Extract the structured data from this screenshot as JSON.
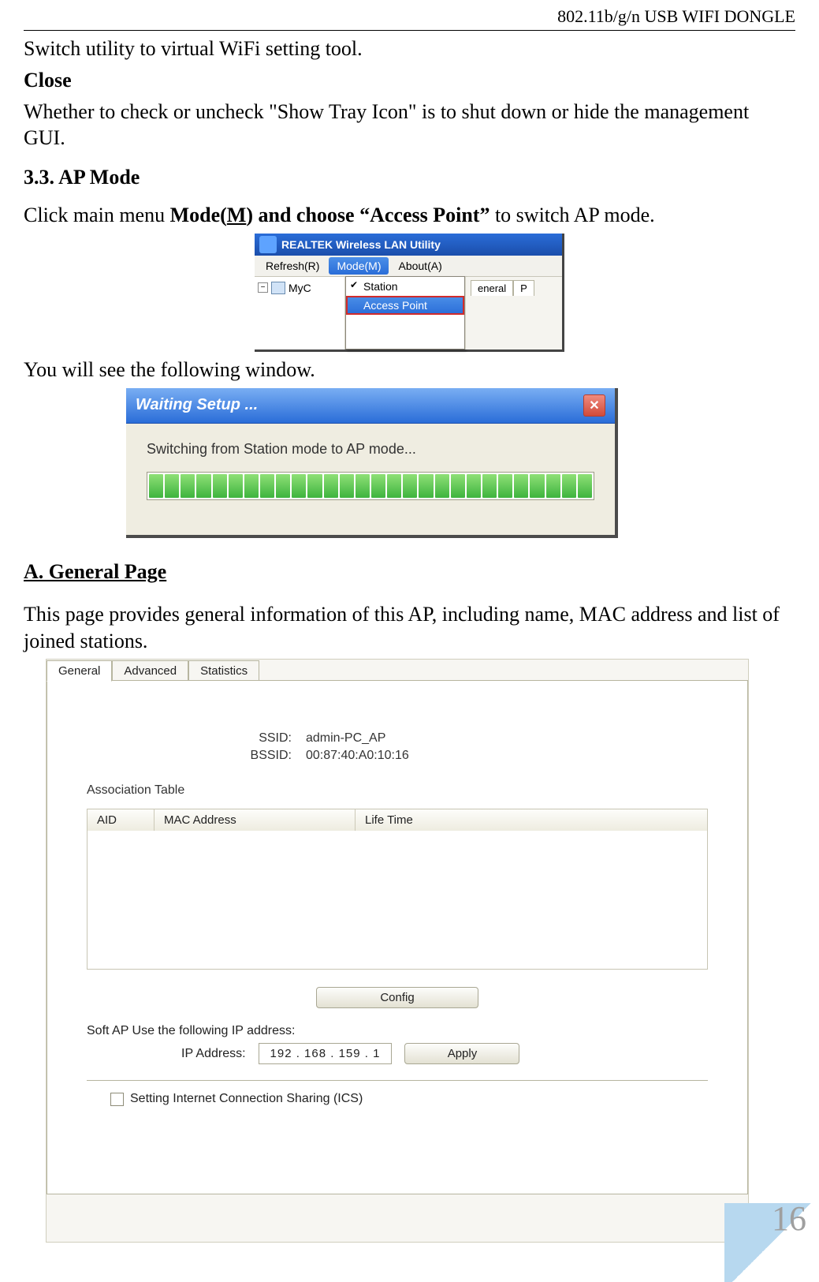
{
  "header": "802.11b/g/n USB WIFI DONGLE",
  "intro": {
    "line1": "Switch utility to virtual WiFi setting tool.",
    "close_label": "Close",
    "line2": "Whether to check or uncheck \"Show Tray Icon\" is to shut down or hide the management GUI."
  },
  "section": {
    "title": "3.3. AP Mode",
    "p1_a": "Click main menu ",
    "p1_b": "Mode(",
    "p1_c": "M",
    "p1_d": ") and choose ",
    "p1_e": "“Access Point”",
    "p1_f": " to switch AP mode.",
    "p2": "You will see the following window."
  },
  "shot1": {
    "title": "REALTEK Wireless LAN Utility",
    "menu": {
      "refresh": "Refresh(R)",
      "mode": "Mode(M)",
      "about": "About(A)"
    },
    "tree_label": "MyC",
    "dropdown": {
      "station": "Station",
      "ap": "Access Point"
    },
    "right_tab1": "eneral",
    "right_tab2": "P"
  },
  "shot2": {
    "title": "Waiting Setup ...",
    "msg": "Switching from Station mode to AP mode...",
    "progress_segments": 28
  },
  "general_heading": "A. General Page",
  "general_desc": "This page provides general information of this AP, including name, MAC address and list of joined stations.",
  "shot3": {
    "tabs": {
      "general": "General",
      "advanced": "Advanced",
      "statistics": "Statistics"
    },
    "ssid_label": "SSID:",
    "ssid_value": "admin-PC_AP",
    "bssid_label": "BSSID:",
    "bssid_value": "00:87:40:A0:10:16",
    "assoc_label": "Association Table",
    "columns": {
      "aid": "AID",
      "mac": "MAC Address",
      "life": "Life Time"
    },
    "config_btn": "Config",
    "softap_line": "Soft AP Use the following IP address:",
    "ip_label": "IP Address:",
    "ip_value": "192 . 168 . 159 .   1",
    "apply_btn": "Apply",
    "ics_label": "Setting Internet Connection Sharing (ICS)"
  },
  "page_number": "16"
}
